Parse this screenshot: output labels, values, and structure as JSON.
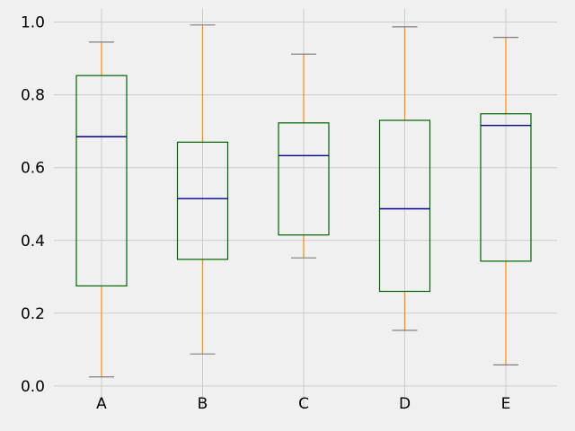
{
  "chart_data": {
    "type": "box",
    "title": "",
    "xlabel": "",
    "ylabel": "",
    "categories": [
      "A",
      "B",
      "C",
      "D",
      "E"
    ],
    "boxes": [
      {
        "name": "A",
        "whisker_low": 0.025,
        "q1": 0.275,
        "median": 0.685,
        "q3": 0.853,
        "whisker_high": 0.945
      },
      {
        "name": "B",
        "whisker_low": 0.088,
        "q1": 0.348,
        "median": 0.515,
        "q3": 0.67,
        "whisker_high": 0.992
      },
      {
        "name": "C",
        "whisker_low": 0.352,
        "q1": 0.415,
        "median": 0.633,
        "q3": 0.723,
        "whisker_high": 0.912
      },
      {
        "name": "D",
        "whisker_low": 0.153,
        "q1": 0.26,
        "median": 0.487,
        "q3": 0.73,
        "whisker_high": 0.987
      },
      {
        "name": "E",
        "whisker_low": 0.058,
        "q1": 0.343,
        "median": 0.716,
        "q3": 0.748,
        "whisker_high": 0.958
      }
    ],
    "ylim": [
      -0.025,
      1.036
    ],
    "yticks": [
      0.0,
      0.2,
      0.4,
      0.6,
      0.8,
      1.0
    ],
    "ytick_labels": [
      "0.0",
      "0.2",
      "0.4",
      "0.6",
      "0.8",
      "1.0"
    ],
    "grid": true,
    "colors": {
      "box": "#006400",
      "whisker": "#ff8c00",
      "median": "#00008b",
      "cap": "#808080",
      "grid": "#cbcbcb",
      "background": "#f0f0f0"
    }
  }
}
